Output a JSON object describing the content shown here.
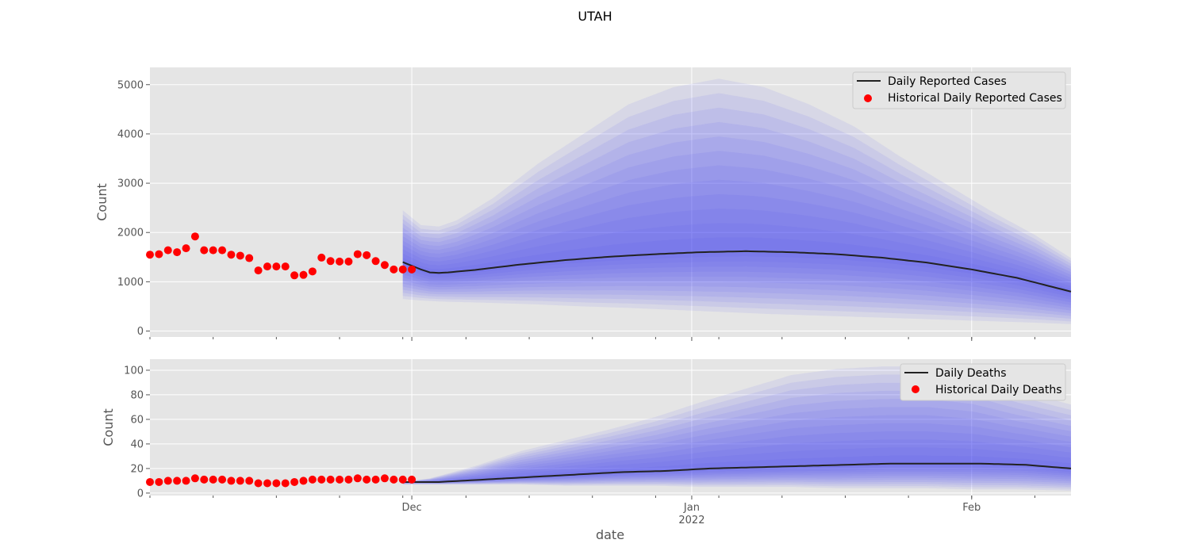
{
  "figure": {
    "title": "UTAH",
    "xlabel": "date"
  },
  "colors": {
    "panel_bg": "#e5e5e5",
    "grid": "#ffffff",
    "band": "#4a4af0",
    "line": "#222222",
    "points": "#ff0000"
  },
  "chart_data": [
    {
      "type": "line",
      "ylabel": "Count",
      "xlim": [
        "2021-11-02",
        "2022-02-12"
      ],
      "ylim": [
        -120,
        5350
      ],
      "yticks": [
        0,
        1000,
        2000,
        3000,
        4000,
        5000
      ],
      "grid": true,
      "legend": {
        "placement": "top-right",
        "entries": [
          "Daily Reported Cases",
          "Historical Daily Reported Cases"
        ]
      },
      "historical": {
        "name": "Historical Daily Reported Cases",
        "x": [
          "2021-11-02",
          "2021-11-03",
          "2021-11-04",
          "2021-11-05",
          "2021-11-06",
          "2021-11-07",
          "2021-11-08",
          "2021-11-09",
          "2021-11-10",
          "2021-11-11",
          "2021-11-12",
          "2021-11-13",
          "2021-11-14",
          "2021-11-15",
          "2021-11-16",
          "2021-11-17",
          "2021-11-18",
          "2021-11-19",
          "2021-11-20",
          "2021-11-21",
          "2021-11-22",
          "2021-11-23",
          "2021-11-24",
          "2021-11-25",
          "2021-11-26",
          "2021-11-27",
          "2021-11-28",
          "2021-11-29",
          "2021-11-30",
          "2021-12-01"
        ],
        "values": [
          1550,
          1560,
          1640,
          1600,
          1680,
          1920,
          1640,
          1640,
          1640,
          1550,
          1530,
          1480,
          1230,
          1310,
          1310,
          1310,
          1130,
          1140,
          1210,
          1490,
          1420,
          1410,
          1410,
          1560,
          1540,
          1420,
          1340,
          1250,
          1250,
          1250
        ]
      },
      "median": {
        "name": "Daily Reported Cases",
        "x": [
          "2021-11-30",
          "2021-12-02",
          "2021-12-03",
          "2021-12-04",
          "2021-12-05",
          "2021-12-08",
          "2021-12-13",
          "2021-12-18",
          "2021-12-23",
          "2021-12-28",
          "2022-01-02",
          "2022-01-07",
          "2022-01-12",
          "2022-01-17",
          "2022-01-22",
          "2022-01-27",
          "2022-02-01",
          "2022-02-06",
          "2022-02-12"
        ],
        "values": [
          1400,
          1250,
          1190,
          1180,
          1190,
          1240,
          1350,
          1440,
          1510,
          1560,
          1600,
          1620,
          1600,
          1560,
          1490,
          1390,
          1250,
          1080,
          800
        ]
      },
      "band_x": [
        "2021-11-30",
        "2021-12-02",
        "2021-12-04",
        "2021-12-06",
        "2021-12-10",
        "2021-12-15",
        "2021-12-20",
        "2021-12-25",
        "2021-12-30",
        "2022-01-04",
        "2022-01-09",
        "2022-01-14",
        "2022-01-19",
        "2022-01-24",
        "2022-01-29",
        "2022-02-03",
        "2022-02-08",
        "2022-02-12"
      ],
      "band_lower": [
        650,
        620,
        600,
        590,
        570,
        540,
        500,
        470,
        430,
        390,
        350,
        320,
        290,
        260,
        230,
        200,
        170,
        140
      ],
      "band_upper": [
        2450,
        2150,
        2120,
        2250,
        2700,
        3400,
        4000,
        4600,
        4950,
        5120,
        4950,
        4600,
        4150,
        3550,
        3000,
        2450,
        1950,
        1480
      ]
    },
    {
      "type": "line",
      "ylabel": "Count",
      "xlim": [
        "2021-11-02",
        "2022-02-12"
      ],
      "ylim": [
        -2,
        109
      ],
      "yticks": [
        0,
        20,
        40,
        60,
        80,
        100
      ],
      "xticks": [
        {
          "date": "2021-12-01",
          "label": "Dec",
          "sublabel": ""
        },
        {
          "date": "2022-01-01",
          "label": "Jan",
          "sublabel": "2022"
        },
        {
          "date": "2022-02-01",
          "label": "Feb",
          "sublabel": ""
        }
      ],
      "grid": true,
      "legend": {
        "placement": "top-right",
        "entries": [
          "Daily Deaths",
          "Historical Daily Deaths"
        ]
      },
      "historical": {
        "name": "Historical Daily Deaths",
        "x": [
          "2021-11-02",
          "2021-11-03",
          "2021-11-04",
          "2021-11-05",
          "2021-11-06",
          "2021-11-07",
          "2021-11-08",
          "2021-11-09",
          "2021-11-10",
          "2021-11-11",
          "2021-11-12",
          "2021-11-13",
          "2021-11-14",
          "2021-11-15",
          "2021-11-16",
          "2021-11-17",
          "2021-11-18",
          "2021-11-19",
          "2021-11-20",
          "2021-11-21",
          "2021-11-22",
          "2021-11-23",
          "2021-11-24",
          "2021-11-25",
          "2021-11-26",
          "2021-11-27",
          "2021-11-28",
          "2021-11-29",
          "2021-11-30",
          "2021-12-01"
        ],
        "values": [
          9,
          9,
          10,
          10,
          10,
          12,
          11,
          11,
          11,
          10,
          10,
          10,
          8,
          8,
          8,
          8,
          9,
          10,
          11,
          11,
          11,
          11,
          11,
          12,
          11,
          11,
          12,
          11,
          11,
          11
        ]
      },
      "median": {
        "name": "Daily Deaths",
        "x": [
          "2021-11-30",
          "2021-12-04",
          "2021-12-09",
          "2021-12-14",
          "2021-12-19",
          "2021-12-24",
          "2021-12-29",
          "2022-01-03",
          "2022-01-08",
          "2022-01-13",
          "2022-01-18",
          "2022-01-23",
          "2022-01-28",
          "2022-02-02",
          "2022-02-07",
          "2022-02-12"
        ],
        "values": [
          9,
          9,
          11,
          13,
          15,
          17,
          18,
          20,
          21,
          22,
          23,
          24,
          24,
          24,
          23,
          20
        ]
      },
      "band_x": [
        "2021-11-30",
        "2021-12-03",
        "2021-12-08",
        "2021-12-13",
        "2021-12-18",
        "2021-12-23",
        "2021-12-28",
        "2022-01-02",
        "2022-01-07",
        "2022-01-12",
        "2022-01-17",
        "2022-01-22",
        "2022-01-27",
        "2022-02-01",
        "2022-02-06",
        "2022-02-12"
      ],
      "band_lower": [
        7,
        7,
        7,
        7,
        6,
        6,
        6,
        5,
        5,
        5,
        4,
        4,
        4,
        3,
        3,
        2
      ],
      "band_upper": [
        9,
        12,
        22,
        34,
        43,
        52,
        62,
        74,
        85,
        96,
        101,
        103,
        103,
        97,
        84,
        72
      ]
    }
  ]
}
